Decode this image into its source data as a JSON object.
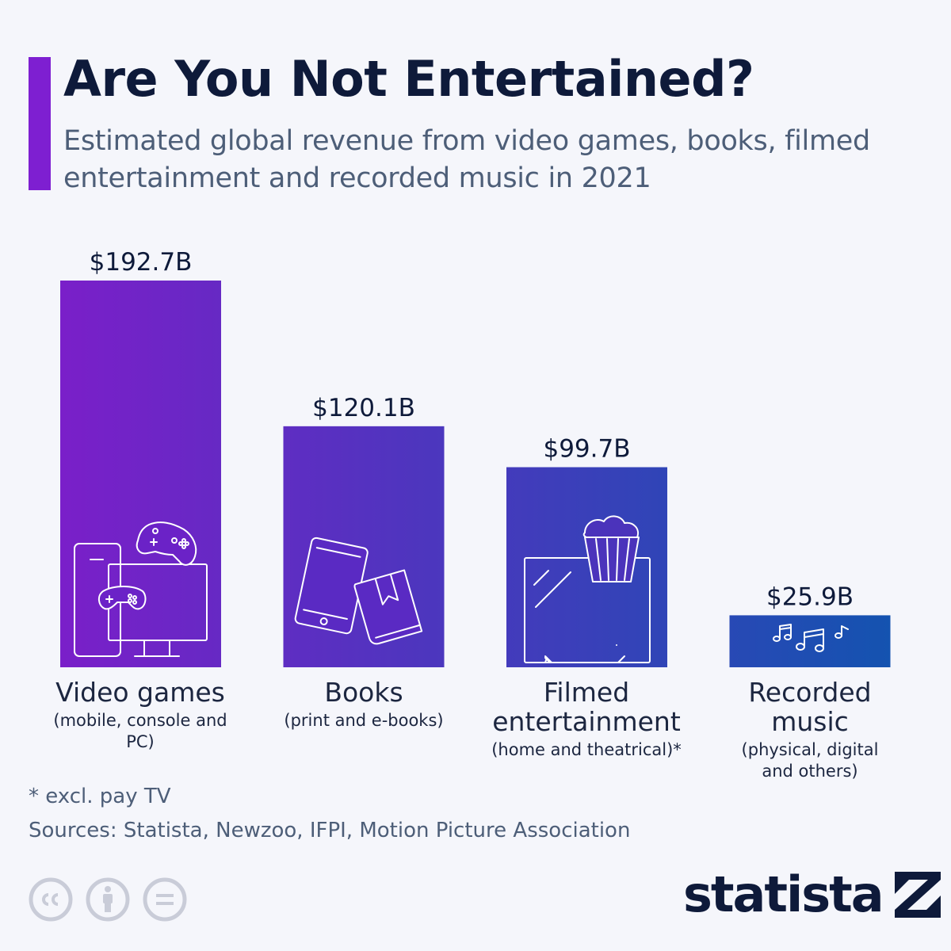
{
  "header": {
    "title": "Are You Not Entertained?",
    "subtitle": "Estimated global revenue from video games, books, filmed entertainment and recorded music in 2021"
  },
  "colors": {
    "accent": "#7e1fd1",
    "bar_gradient_start": "#7a1fc9",
    "bar_gradient_end": "#1453b0",
    "icon_stroke": "#ffffff"
  },
  "chart_data": {
    "type": "bar",
    "title": "Are You Not Entertained?",
    "subtitle": "Estimated global revenue from video games, books, filmed entertainment and recorded music in 2021",
    "categories": [
      "Video games",
      "Books",
      "Filmed entertainment",
      "Recorded music"
    ],
    "category_notes": [
      "(mobile, console and PC)",
      "(print and e-books)",
      "(home and theatrical)*",
      "(physical, digital and others)"
    ],
    "values": [
      192.7,
      120.1,
      99.7,
      25.9
    ],
    "value_labels": [
      "$192.7B",
      "$120.1B",
      "$99.7B",
      "$25.9B"
    ],
    "unit": "billion U.S. dollars",
    "ylim": [
      0,
      192.7
    ],
    "grid": false,
    "icons": [
      "video-game-devices-icon",
      "book-tablet-icon",
      "tv-popcorn-icon",
      "music-notes-icon"
    ]
  },
  "footer": {
    "footnote": "* excl. pay TV",
    "sources": "Sources: Statista, Newzoo, IFPI, Motion Picture Association",
    "brand": "statista",
    "license_icons": [
      "cc-icon",
      "attribution-icon",
      "no-derivatives-icon"
    ]
  }
}
